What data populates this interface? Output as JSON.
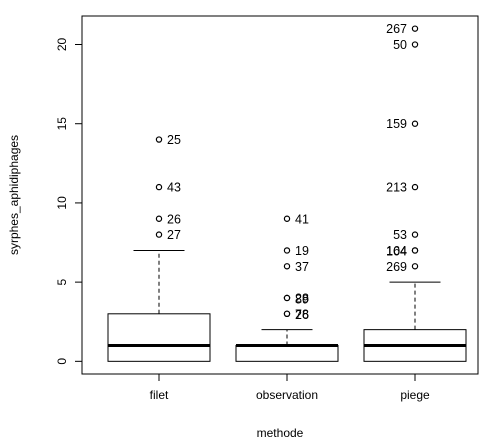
{
  "chart_data": {
    "type": "boxplot",
    "xlabel": "methode",
    "ylabel": "syrphes_aphidiphages",
    "ylim": [
      -0.8,
      21.8
    ],
    "yticks": [
      0,
      5,
      10,
      15,
      20
    ],
    "grid": false,
    "categories": [
      "filet",
      "observation",
      "piege"
    ],
    "boxes": [
      {
        "category": "filet",
        "min": 0,
        "q1": 0,
        "median": 1,
        "q3": 3,
        "max": 7,
        "outliers": [
          {
            "value": 14,
            "label": "25"
          },
          {
            "value": 11,
            "label": "43"
          },
          {
            "value": 9,
            "label": "26"
          },
          {
            "value": 8,
            "label": "27"
          }
        ]
      },
      {
        "category": "observation",
        "min": 0,
        "q1": 0,
        "median": 1,
        "q3": 1,
        "max": 2,
        "outliers": [
          {
            "value": 9,
            "label": "41"
          },
          {
            "value": 7,
            "label": "19"
          },
          {
            "value": 6,
            "label": "37"
          },
          {
            "value": 4,
            "label": "28"
          },
          {
            "value": 4,
            "label": "89"
          },
          {
            "value": 3,
            "label": "78"
          },
          {
            "value": 3,
            "label": "26"
          }
        ]
      },
      {
        "category": "piege",
        "min": 0,
        "q1": 0,
        "median": 1,
        "q3": 2,
        "max": 5,
        "outliers": [
          {
            "value": 21,
            "label": "267"
          },
          {
            "value": 20,
            "label": "50"
          },
          {
            "value": 15,
            "label": "159"
          },
          {
            "value": 11,
            "label": "213"
          },
          {
            "value": 8,
            "label": "53"
          },
          {
            "value": 7,
            "label": "164"
          },
          {
            "value": 7,
            "label": "104"
          },
          {
            "value": 6,
            "label": "269"
          }
        ]
      }
    ]
  }
}
